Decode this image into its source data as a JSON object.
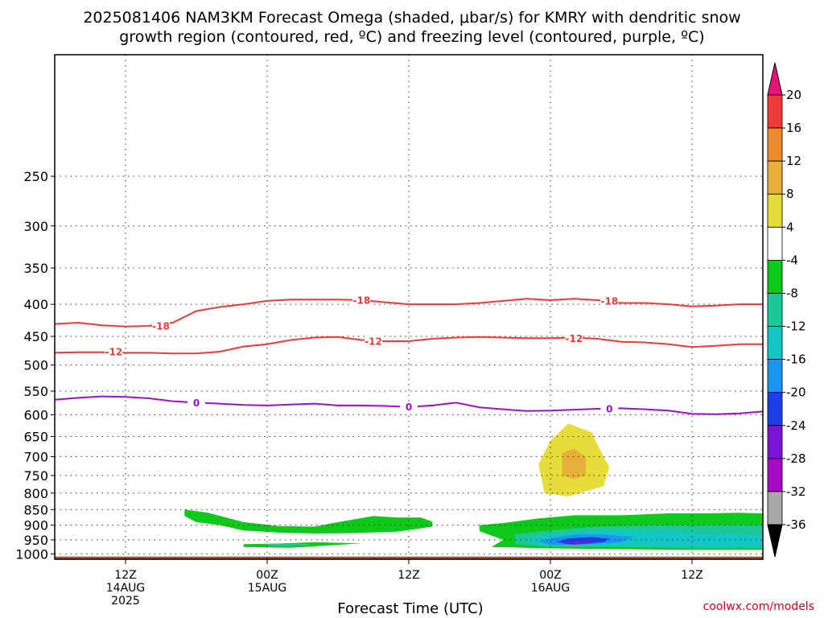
{
  "chart_data": {
    "type": "heatmap",
    "title_lines": [
      "2025081406 NAM3KM Forecast Omega (shaded, μbar/s) for KMRY with dendritic snow",
      "growth region (contoured, red, ºC) and freezing level (contoured, purple, ºC)"
    ],
    "xlabel": "Forecast Time (UTC)",
    "credit": "coolwx.com/models",
    "x_range_hours": [
      6,
      66
    ],
    "y_range_hpa": [
      160,
      1020
    ],
    "y_scale": "pressure (log)",
    "x_ticks": [
      {
        "hours": 12,
        "lines": [
          "12Z",
          "14AUG",
          "2025"
        ]
      },
      {
        "hours": 24,
        "lines": [
          "00Z",
          "15AUG"
        ]
      },
      {
        "hours": 36,
        "lines": [
          "12Z"
        ]
      },
      {
        "hours": 48,
        "lines": [
          "00Z",
          "16AUG"
        ]
      },
      {
        "hours": 60,
        "lines": [
          "12Z"
        ]
      }
    ],
    "y_ticks": [
      "250",
      "300",
      "350",
      "400",
      "450",
      "500",
      "550",
      "600",
      "650",
      "700",
      "750",
      "800",
      "850",
      "900",
      "950",
      "1000"
    ],
    "colorbar": {
      "labels": [
        "20",
        "16",
        "12",
        "8",
        "4",
        "-4",
        "-8",
        "-12",
        "-16",
        "-20",
        "-24",
        "-28",
        "-32",
        "-36"
      ],
      "colors_top_to_bottom": [
        "#f03a3a",
        "#eb8a2e",
        "#e6b03a",
        "#e6dc3a",
        "#ffffff",
        "#0ec81a",
        "#1cc996",
        "#12c6c6",
        "#1a96f0",
        "#1c3ee6",
        "#7a14d6",
        "#a60ac4",
        "#a8a8a8"
      ],
      "top_arrow_color": "#e6147a",
      "bottom_arrow_color": "#000000"
    },
    "contours": [
      {
        "name": "-18",
        "color": "#f03a3a",
        "points": [
          [
            6,
            430
          ],
          [
            8,
            428
          ],
          [
            10,
            432
          ],
          [
            12,
            434
          ],
          [
            14,
            433
          ],
          [
            16,
            428
          ],
          [
            18,
            410
          ],
          [
            20,
            404
          ],
          [
            22,
            400
          ],
          [
            24,
            395
          ],
          [
            26,
            393
          ],
          [
            28,
            393
          ],
          [
            30,
            393
          ],
          [
            32,
            394
          ],
          [
            34,
            397
          ],
          [
            36,
            400
          ],
          [
            38,
            400
          ],
          [
            40,
            400
          ],
          [
            42,
            398
          ],
          [
            44,
            395
          ],
          [
            46,
            392
          ],
          [
            48,
            394
          ],
          [
            50,
            392
          ],
          [
            52,
            394
          ],
          [
            54,
            398
          ],
          [
            56,
            398
          ],
          [
            58,
            400
          ],
          [
            60,
            403
          ],
          [
            62,
            402
          ],
          [
            64,
            400
          ],
          [
            66,
            400
          ]
        ],
        "labels": [
          [
            15,
            433
          ],
          [
            32,
            394
          ],
          [
            53,
            395
          ]
        ]
      },
      {
        "name": "-12",
        "color": "#f03a3a",
        "points": [
          [
            6,
            478
          ],
          [
            8,
            477
          ],
          [
            10,
            477
          ],
          [
            12,
            478
          ],
          [
            14,
            478
          ],
          [
            16,
            479
          ],
          [
            18,
            479
          ],
          [
            20,
            476
          ],
          [
            22,
            467
          ],
          [
            24,
            463
          ],
          [
            26,
            456
          ],
          [
            28,
            452
          ],
          [
            30,
            451
          ],
          [
            32,
            456
          ],
          [
            34,
            458
          ],
          [
            36,
            458
          ],
          [
            38,
            454
          ],
          [
            40,
            452
          ],
          [
            42,
            451
          ],
          [
            44,
            452
          ],
          [
            46,
            453
          ],
          [
            48,
            453
          ],
          [
            50,
            452
          ],
          [
            52,
            454
          ],
          [
            54,
            459
          ],
          [
            56,
            460
          ],
          [
            58,
            463
          ],
          [
            60,
            468
          ],
          [
            62,
            466
          ],
          [
            64,
            463
          ],
          [
            66,
            463
          ]
        ],
        "labels": [
          [
            11,
            476
          ],
          [
            33,
            458
          ],
          [
            50,
            453
          ]
        ]
      },
      {
        "name": "0",
        "color": "#9a12c4",
        "points": [
          [
            6,
            568
          ],
          [
            8,
            564
          ],
          [
            10,
            561
          ],
          [
            12,
            562
          ],
          [
            14,
            565
          ],
          [
            16,
            571
          ],
          [
            18,
            574
          ],
          [
            20,
            576
          ],
          [
            22,
            579
          ],
          [
            24,
            580
          ],
          [
            26,
            578
          ],
          [
            28,
            576
          ],
          [
            30,
            580
          ],
          [
            32,
            580
          ],
          [
            34,
            581
          ],
          [
            36,
            583
          ],
          [
            38,
            580
          ],
          [
            40,
            574
          ],
          [
            42,
            584
          ],
          [
            44,
            588
          ],
          [
            46,
            592
          ],
          [
            48,
            591
          ],
          [
            50,
            589
          ],
          [
            52,
            587
          ],
          [
            54,
            586
          ],
          [
            56,
            588
          ],
          [
            58,
            591
          ],
          [
            60,
            598
          ],
          [
            62,
            599
          ],
          [
            64,
            597
          ],
          [
            66,
            593
          ]
        ],
        "labels": [
          [
            18,
            574
          ],
          [
            36,
            583
          ],
          [
            53,
            587
          ]
        ]
      }
    ],
    "shaded_regions": [
      {
        "name": "upward-omega-yellow",
        "color": "#e6dc3a",
        "points": [
          [
            47,
            720
          ],
          [
            48,
            660
          ],
          [
            49.5,
            620
          ],
          [
            51.5,
            640
          ],
          [
            52.5,
            700
          ],
          [
            53,
            726
          ],
          [
            52.5,
            780
          ],
          [
            49.5,
            810
          ],
          [
            47.5,
            800
          ]
        ]
      },
      {
        "name": "upward-omega-orange",
        "color": "#e6b03a",
        "points": [
          [
            49,
            690
          ],
          [
            50,
            680
          ],
          [
            51,
            700
          ],
          [
            51,
            750
          ],
          [
            50,
            760
          ],
          [
            49,
            750
          ]
        ]
      },
      {
        "name": "omega-green-left",
        "color": "#0ec81a",
        "points": [
          [
            17,
            850
          ],
          [
            19,
            860
          ],
          [
            22,
            890
          ],
          [
            25,
            903
          ],
          [
            28,
            905
          ],
          [
            30,
            890
          ],
          [
            33,
            870
          ],
          [
            35,
            875
          ],
          [
            37,
            875
          ],
          [
            38,
            888
          ],
          [
            38,
            905
          ],
          [
            35,
            922
          ],
          [
            31,
            927
          ],
          [
            28,
            928
          ],
          [
            25,
            925
          ],
          [
            22,
            918
          ],
          [
            20,
            900
          ],
          [
            18,
            890
          ],
          [
            17,
            870
          ]
        ]
      },
      {
        "name": "omega-green-lower",
        "color": "#0ec81a",
        "points": [
          [
            22,
            965
          ],
          [
            25,
            963
          ],
          [
            28,
            958
          ],
          [
            32,
            962
          ],
          [
            26,
            978
          ],
          [
            22,
            975
          ]
        ]
      },
      {
        "name": "omega-teal-lower",
        "color": "#1cc996",
        "points": [
          [
            24,
            965
          ],
          [
            26,
            963
          ],
          [
            28,
            966
          ],
          [
            26,
            972
          ],
          [
            24,
            970
          ]
        ]
      },
      {
        "name": "omega-green-right",
        "color": "#0ec81a",
        "points": [
          [
            42,
            900
          ],
          [
            44,
            893
          ],
          [
            47,
            878
          ],
          [
            50,
            868
          ],
          [
            54,
            868
          ],
          [
            58,
            862
          ],
          [
            61,
            862
          ],
          [
            64,
            860
          ],
          [
            66,
            862
          ],
          [
            66,
            985
          ],
          [
            60,
            985
          ],
          [
            54,
            983
          ],
          [
            48,
            980
          ],
          [
            43,
            975
          ],
          [
            44,
            950
          ],
          [
            42,
            920
          ]
        ]
      },
      {
        "name": "omega-teal-right",
        "color": "#1cc996",
        "points": [
          [
            45,
            930
          ],
          [
            48,
            918
          ],
          [
            52,
            905
          ],
          [
            56,
            900
          ],
          [
            60,
            900
          ],
          [
            66,
            900
          ],
          [
            66,
            980
          ],
          [
            60,
            980
          ],
          [
            54,
            975
          ],
          [
            48,
            975
          ],
          [
            45,
            965
          ]
        ]
      },
      {
        "name": "omega-cyan-right",
        "color": "#12c6c6",
        "points": [
          [
            46,
            945
          ],
          [
            48,
            930
          ],
          [
            51,
            922
          ],
          [
            54,
            918
          ],
          [
            58,
            920
          ],
          [
            62,
            930
          ],
          [
            66,
            935
          ],
          [
            66,
            975
          ],
          [
            60,
            972
          ],
          [
            52,
            970
          ],
          [
            47,
            967
          ]
        ]
      },
      {
        "name": "omega-blue-right",
        "color": "#1a96f0",
        "points": [
          [
            47,
            955
          ],
          [
            48.5,
            940
          ],
          [
            50.5,
            930
          ],
          [
            53,
            933
          ],
          [
            55,
            940
          ],
          [
            54,
            958
          ],
          [
            51,
            966
          ],
          [
            48,
            968
          ]
        ]
      },
      {
        "name": "omega-darkblue-right",
        "color": "#1c3ee6",
        "points": [
          [
            48.5,
            958
          ],
          [
            49.5,
            945
          ],
          [
            51.5,
            940
          ],
          [
            53,
            946
          ],
          [
            52.5,
            958
          ],
          [
            50,
            965
          ]
        ]
      },
      {
        "name": "omega-purple-right",
        "color": "#7a14d6",
        "points": [
          [
            49,
            962
          ],
          [
            50,
            955
          ],
          [
            51.5,
            955
          ],
          [
            51.5,
            962
          ],
          [
            50,
            967
          ]
        ]
      }
    ],
    "terrain_color": "#a0522d",
    "terrain_top_hpa": 1010
  }
}
